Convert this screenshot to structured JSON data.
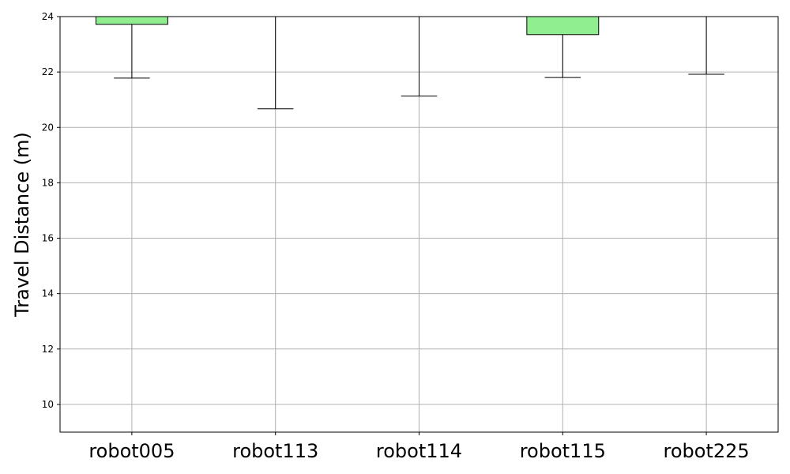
{
  "chart_data": {
    "type": "box",
    "title": "",
    "xlabel": "",
    "ylabel": "Travel Distance (m)",
    "ylim": [
      9,
      24
    ],
    "yticks": [
      "10",
      "12",
      "14",
      "16",
      "18",
      "20",
      "22",
      "24"
    ],
    "grid": true,
    "categories": [
      "robot005",
      "robot113",
      "robot114",
      "robot115",
      "robot225"
    ],
    "box_color": "#90ee90",
    "boxes": [
      {
        "name": "robot005",
        "whisker_low": 21.78,
        "q1": 23.72,
        "whisker_high": 24.0
      },
      {
        "name": "robot113",
        "whisker_low": 20.67,
        "q1": 24.0,
        "whisker_high": 24.0
      },
      {
        "name": "robot114",
        "whisker_low": 21.13,
        "q1": 24.0,
        "whisker_high": 24.0
      },
      {
        "name": "robot115",
        "whisker_low": 21.8,
        "q1": 23.35,
        "whisker_high": 24.0
      },
      {
        "name": "robot225",
        "whisker_low": 21.92,
        "q1": 24.0,
        "whisker_high": 24.0
      }
    ]
  }
}
